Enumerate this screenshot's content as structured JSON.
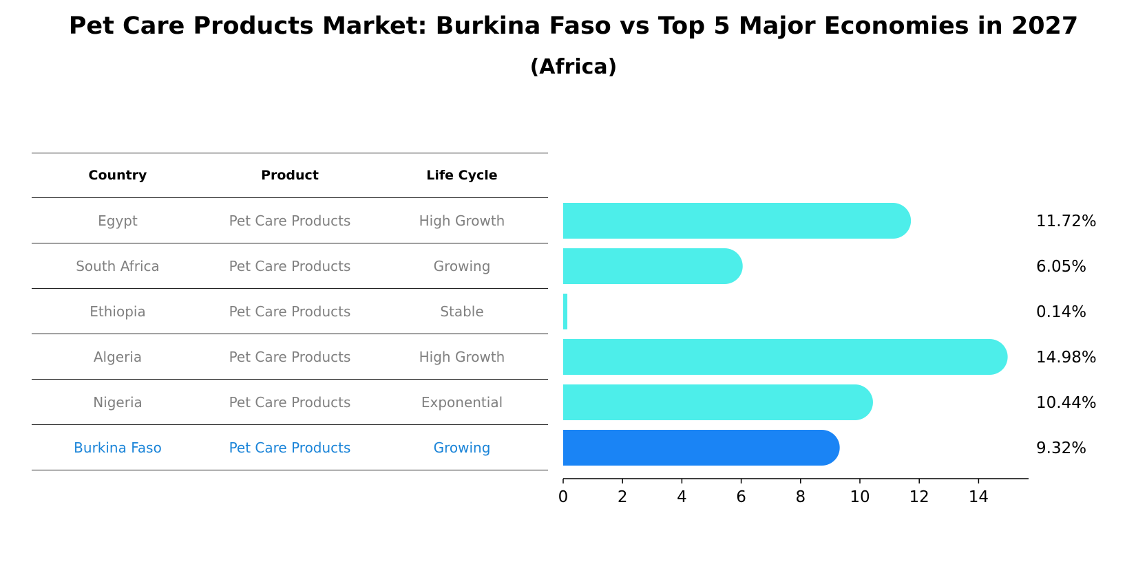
{
  "title": "Pet Care Products Market: Burkina Faso vs Top 5 Major Economies in 2027",
  "subtitle": "(Africa)",
  "table": {
    "headers": [
      "Country",
      "Product",
      "Life Cycle"
    ],
    "rows": [
      {
        "country": "Egypt",
        "product": "Pet Care Products",
        "life_cycle": "High Growth"
      },
      {
        "country": "South Africa",
        "product": "Pet Care Products",
        "life_cycle": "Growing"
      },
      {
        "country": "Ethiopia",
        "product": "Pet Care Products",
        "life_cycle": "Stable"
      },
      {
        "country": "Algeria",
        "product": "Pet Care Products",
        "life_cycle": "High Growth"
      },
      {
        "country": "Nigeria",
        "product": "Pet Care Products",
        "life_cycle": "Exponential"
      },
      {
        "country": "Burkina Faso",
        "product": "Pet Care Products",
        "life_cycle": "Growing"
      }
    ]
  },
  "chart_data": {
    "type": "bar",
    "orientation": "horizontal",
    "categories": [
      "Egypt",
      "South Africa",
      "Ethiopia",
      "Algeria",
      "Nigeria",
      "Burkina Faso"
    ],
    "values": [
      11.72,
      6.05,
      0.14,
      14.98,
      10.44,
      9.32
    ],
    "value_labels": [
      "11.72%",
      "6.05%",
      "0.14%",
      "14.98%",
      "10.44%",
      "9.32%"
    ],
    "xlim": [
      0,
      15.8
    ],
    "xticks": [
      0,
      2,
      4,
      6,
      8,
      10,
      12,
      14
    ],
    "colors": {
      "default": "#4deeea",
      "highlight": "#1a84f5"
    },
    "highlight_category": "Burkina Faso"
  }
}
